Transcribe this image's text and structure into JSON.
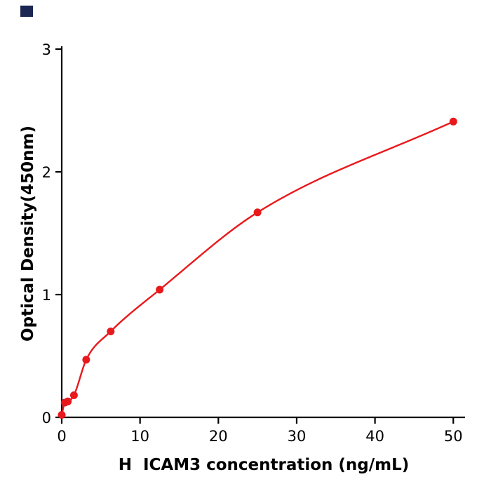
{
  "page": {
    "background": "#ffffff"
  },
  "corner_mark": {
    "color": "#1b2653"
  },
  "chart_data": {
    "type": "scatter",
    "title": "",
    "xlabel": "H  ICAM3 concentration (ng/mL)",
    "ylabel": "Optical Density(450nm)",
    "x": [
      0,
      0.39,
      0.78,
      1.56,
      3.125,
      6.25,
      12.5,
      25,
      50
    ],
    "y": [
      0.02,
      0.12,
      0.13,
      0.18,
      0.47,
      0.7,
      1.04,
      1.67,
      2.41
    ],
    "fit_line": true,
    "xlim": [
      0,
      51.5
    ],
    "ylim": [
      0,
      3
    ],
    "xticks": [
      0,
      10,
      20,
      30,
      40,
      50
    ],
    "yticks": [
      0,
      1,
      2,
      3
    ],
    "grid": false,
    "legend": "none",
    "point_color": "#e8191c",
    "line_color": "#e8191c",
    "axis_color": "#000000"
  }
}
